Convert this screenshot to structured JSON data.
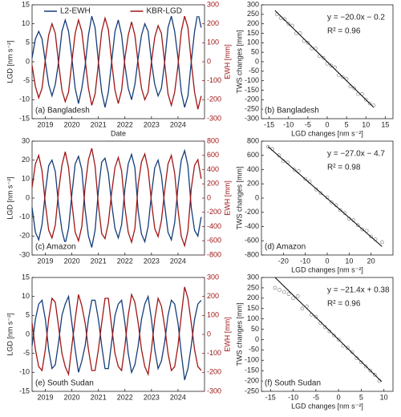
{
  "chart_data": [
    {
      "type": "line",
      "panel_label": "(a) Bangladesh",
      "xlabel": "Date",
      "ylabel": "LGD [nm s⁻²]",
      "y2label": "EWH [mm]",
      "y2color": "#a01515",
      "legend": "top",
      "x": [
        2018.5,
        2018.625,
        2018.75,
        2018.875,
        2019,
        2019.125,
        2019.25,
        2019.375,
        2019.5,
        2019.625,
        2019.75,
        2019.875,
        2020,
        2020.125,
        2020.25,
        2020.375,
        2020.5,
        2020.625,
        2020.75,
        2020.875,
        2021,
        2021.125,
        2021.25,
        2021.375,
        2021.5,
        2021.625,
        2021.75,
        2021.875,
        2022,
        2022.125,
        2022.25,
        2022.375,
        2022.5,
        2022.625,
        2022.75,
        2022.875,
        2023,
        2023.125,
        2023.25,
        2023.375,
        2023.5,
        2023.625,
        2023.75,
        2023.875,
        2024,
        2024.125,
        2024.25,
        2024.375,
        2024.5,
        2024.625,
        2024.75,
        2024.875
      ],
      "xlim": [
        2018.5,
        2025
      ],
      "xticks": [
        2019,
        2020,
        2021,
        2022,
        2023,
        2024
      ],
      "ylim": [
        -15,
        15
      ],
      "yticks": [
        -15,
        -10,
        -5,
        0,
        5,
        10,
        15
      ],
      "y2lim": [
        -300,
        300
      ],
      "y2ticks": [
        -300,
        -200,
        -100,
        0,
        100,
        200,
        300
      ],
      "series": [
        {
          "name": "L2-EWH",
          "color": "#143d7a",
          "values": [
            1,
            6,
            8,
            6,
            0,
            -6,
            -9,
            -6,
            0,
            8,
            11,
            8,
            1,
            -7,
            -11,
            -7,
            -1,
            7,
            12,
            9,
            0,
            -8,
            -12,
            -8,
            0,
            8,
            11,
            7,
            -1,
            -7,
            -10,
            -6,
            1,
            7,
            10,
            8,
            0,
            -6,
            -9,
            -7,
            0,
            9,
            12,
            8,
            1,
            -8,
            -12,
            -9,
            0,
            8,
            13,
            9
          ]
        },
        {
          "name": "KBR-LGD",
          "color": "#a01515",
          "axis": "y2",
          "values": [
            -20,
            -130,
            -190,
            -140,
            10,
            140,
            200,
            150,
            -10,
            -150,
            -210,
            -160,
            0,
            150,
            220,
            160,
            10,
            -140,
            -230,
            -170,
            -10,
            160,
            230,
            170,
            0,
            -150,
            -220,
            -150,
            20,
            140,
            210,
            140,
            -10,
            -140,
            -200,
            -160,
            0,
            130,
            190,
            150,
            -10,
            -170,
            -230,
            -160,
            -20,
            160,
            240,
            180,
            0,
            -160,
            -250,
            -180
          ]
        }
      ]
    },
    {
      "type": "scatter",
      "panel_label": "(b) Bangladesh",
      "annotations": [
        "y = −20.0x − 0.2",
        "R² = 0.96"
      ],
      "xlabel": "LGD changes [nm s⁻²]",
      "ylabel": "TWS changes [mm]",
      "marker_color": "#888888",
      "line_color": "#000000",
      "x": [
        -13,
        -12,
        -11,
        -10,
        -9,
        -8,
        -7,
        -6,
        -5,
        -4,
        -3,
        -2,
        -1,
        0,
        1,
        2,
        3,
        4,
        5,
        6,
        7,
        8,
        9,
        10,
        11,
        12
      ],
      "values": [
        250,
        230,
        225,
        200,
        190,
        150,
        150,
        110,
        100,
        70,
        70,
        30,
        20,
        -10,
        -20,
        -30,
        -70,
        -80,
        -90,
        -130,
        -140,
        -170,
        -170,
        -200,
        -220,
        -230
      ],
      "fit_line": {
        "x": [
          -13.5,
          12
        ],
        "y": [
          270,
          -240
        ]
      },
      "xlim": [
        -17,
        17
      ],
      "xticks": [
        -15,
        -10,
        -5,
        0,
        5,
        10,
        15
      ],
      "ylim": [
        -300,
        300
      ],
      "yticks": [
        -300,
        -250,
        -200,
        -150,
        -100,
        -50,
        0,
        50,
        100,
        150,
        200,
        250,
        300
      ]
    },
    {
      "type": "line",
      "panel_label": "(c) Amazon",
      "ylabel": "LGD [nm s⁻²]",
      "y2label": "EWH [mm]",
      "y2color": "#a01515",
      "x": [
        2018.5,
        2018.625,
        2018.75,
        2018.875,
        2019,
        2019.125,
        2019.25,
        2019.375,
        2019.5,
        2019.625,
        2019.75,
        2019.875,
        2020,
        2020.125,
        2020.25,
        2020.375,
        2020.5,
        2020.625,
        2020.75,
        2020.875,
        2021,
        2021.125,
        2021.25,
        2021.375,
        2021.5,
        2021.625,
        2021.75,
        2021.875,
        2022,
        2022.125,
        2022.25,
        2022.375,
        2022.5,
        2022.625,
        2022.75,
        2022.875,
        2023,
        2023.125,
        2023.25,
        2023.375,
        2023.5,
        2023.625,
        2023.75,
        2023.875,
        2024,
        2024.125,
        2024.25,
        2024.375,
        2024.5,
        2024.625,
        2024.75,
        2024.875
      ],
      "xlim": [
        2018.5,
        2025
      ],
      "xticks": [
        2019,
        2020,
        2021,
        2022,
        2023,
        2024
      ],
      "ylim": [
        -30,
        30
      ],
      "yticks": [
        -30,
        -20,
        -10,
        0,
        10,
        20,
        30
      ],
      "y2lim": [
        -800,
        800
      ],
      "y2ticks": [
        -800,
        -600,
        -400,
        -200,
        0,
        200,
        400,
        600,
        800
      ],
      "series": [
        {
          "color": "#143d7a",
          "values": [
            -5,
            -18,
            -22,
            -14,
            3,
            17,
            20,
            14,
            -4,
            -17,
            -24,
            -16,
            2,
            18,
            22,
            15,
            -6,
            -20,
            -26,
            -17,
            4,
            19,
            21,
            13,
            -3,
            -16,
            -21,
            -14,
            5,
            18,
            23,
            16,
            -7,
            -19,
            -23,
            -15,
            2,
            16,
            20,
            12,
            -4,
            -18,
            -22,
            -13,
            6,
            20,
            25,
            17,
            -5,
            -17,
            -20,
            -10
          ]
        },
        {
          "color": "#a01515",
          "axis": "y2",
          "values": [
            150,
            480,
            600,
            380,
            -80,
            -450,
            -560,
            -380,
            100,
            460,
            650,
            430,
            -60,
            -480,
            -600,
            -400,
            160,
            540,
            700,
            450,
            -100,
            -500,
            -570,
            -350,
            80,
            430,
            570,
            380,
            -130,
            -480,
            -620,
            -430,
            190,
            510,
            620,
            400,
            -50,
            -430,
            -540,
            -320,
            110,
            480,
            600,
            350,
            -160,
            -540,
            -670,
            -460,
            130,
            460,
            540,
            270
          ]
        }
      ]
    },
    {
      "type": "scatter",
      "panel_label": "(d) Amazon",
      "annotations": [
        "y = −27.0x − 4.7",
        "R² = 0.98"
      ],
      "xlabel": "LGD changes [nm s⁻²]",
      "ylabel": "TWS changes [mm]",
      "marker_color": "#888888",
      "line_color": "#000000",
      "x": [
        -27,
        -25,
        -22,
        -20,
        -18,
        -15,
        -13,
        -10,
        -8,
        -5,
        -3,
        0,
        2,
        4,
        6,
        8,
        10,
        12,
        14,
        16,
        18,
        20,
        22,
        25
      ],
      "values": [
        720,
        690,
        600,
        520,
        500,
        400,
        380,
        270,
        230,
        120,
        70,
        10,
        -60,
        -100,
        -170,
        -210,
        -290,
        -310,
        -380,
        -440,
        -460,
        -540,
        -580,
        -620
      ],
      "fit_line": {
        "x": [
          -27,
          25
        ],
        "y": [
          724,
          -680
        ]
      },
      "xlim": [
        -30,
        30
      ],
      "xticks": [
        -20,
        -10,
        0,
        10,
        20
      ],
      "ylim": [
        -800,
        800
      ],
      "yticks": [
        -800,
        -600,
        -400,
        -200,
        0,
        200,
        400,
        600,
        800
      ]
    },
    {
      "type": "line",
      "panel_label": "(e) South Sudan",
      "ylabel": "LGD [nm s⁻²]",
      "y2label": "EWH [mm]",
      "y2color": "#a01515",
      "x": [
        2018.5,
        2018.625,
        2018.75,
        2018.875,
        2019,
        2019.125,
        2019.25,
        2019.375,
        2019.5,
        2019.625,
        2019.75,
        2019.875,
        2020,
        2020.125,
        2020.25,
        2020.375,
        2020.5,
        2020.625,
        2020.75,
        2020.875,
        2021,
        2021.125,
        2021.25,
        2021.375,
        2021.5,
        2021.625,
        2021.75,
        2021.875,
        2022,
        2022.125,
        2022.25,
        2022.375,
        2022.5,
        2022.625,
        2022.75,
        2022.875,
        2023,
        2023.125,
        2023.25,
        2023.375,
        2023.5,
        2023.625,
        2023.75,
        2023.875,
        2024,
        2024.125,
        2024.25,
        2024.375,
        2024.5,
        2024.625,
        2024.75,
        2024.875
      ],
      "xlim": [
        2018.5,
        2025
      ],
      "xticks": [
        2019,
        2020,
        2021,
        2022,
        2023,
        2024
      ],
      "ylim": [
        -15,
        15
      ],
      "yticks": [
        -15,
        -10,
        -5,
        0,
        5,
        10,
        15
      ],
      "y2lim": [
        -300,
        300
      ],
      "y2ticks": [
        -300,
        -200,
        -100,
        0,
        100,
        200,
        300
      ],
      "series": [
        {
          "color": "#143d7a",
          "values": [
            -3,
            4,
            8,
            9,
            4,
            -4,
            -9,
            -8,
            -2,
            5,
            8,
            10,
            3,
            -4,
            -10,
            -7,
            -3,
            4,
            9,
            9,
            4,
            -3,
            -9,
            -9,
            -2,
            5,
            8,
            9,
            3,
            -5,
            -10,
            -8,
            -3,
            4,
            8,
            10,
            4,
            -4,
            -9,
            -7,
            -2,
            5,
            9,
            8,
            3,
            -5,
            -12,
            -9,
            -3,
            4,
            8,
            9
          ]
        },
        {
          "color": "#a01515",
          "axis": "y2",
          "values": [
            60,
            -80,
            -170,
            -190,
            -80,
            80,
            190,
            170,
            40,
            -100,
            -170,
            -210,
            -60,
            80,
            210,
            150,
            60,
            -80,
            -190,
            -190,
            -80,
            60,
            190,
            190,
            40,
            -100,
            -170,
            -190,
            -60,
            100,
            210,
            170,
            60,
            -80,
            -170,
            -210,
            -80,
            80,
            190,
            150,
            40,
            -100,
            -190,
            -170,
            -60,
            100,
            250,
            190,
            60,
            -80,
            -170,
            -190
          ]
        }
      ]
    },
    {
      "type": "scatter",
      "panel_label": "(f) South Sudan",
      "annotations": [
        "y = −21.4x + 0.38",
        "R² = 0.96"
      ],
      "xlabel": "LGD changes [nm s⁻²]",
      "ylabel": "TWS changes [mm]",
      "marker_color": "#888888",
      "line_color": "#000000",
      "x": [
        -14,
        -13,
        -12,
        -11,
        -10,
        -9,
        -8,
        -7,
        -6,
        -5,
        -4,
        -3,
        -2,
        -1,
        0,
        1,
        2,
        3,
        4,
        5,
        6,
        7,
        8,
        9
      ],
      "values": [
        250,
        240,
        230,
        220,
        200,
        210,
        150,
        160,
        120,
        110,
        80,
        60,
        40,
        20,
        0,
        -30,
        -40,
        -60,
        -90,
        -110,
        -130,
        -150,
        -170,
        -200
      ],
      "fit_line": {
        "x": [
          -14,
          9.5
        ],
        "y": [
          300,
          -203
        ]
      },
      "xlim": [
        -17,
        12
      ],
      "xticks": [
        -15,
        -10,
        -5,
        0,
        5,
        10
      ],
      "ylim": [
        -250,
        300
      ],
      "yticks": [
        -250,
        -200,
        -150,
        -100,
        -50,
        0,
        50,
        100,
        150,
        200,
        250,
        300
      ]
    }
  ]
}
